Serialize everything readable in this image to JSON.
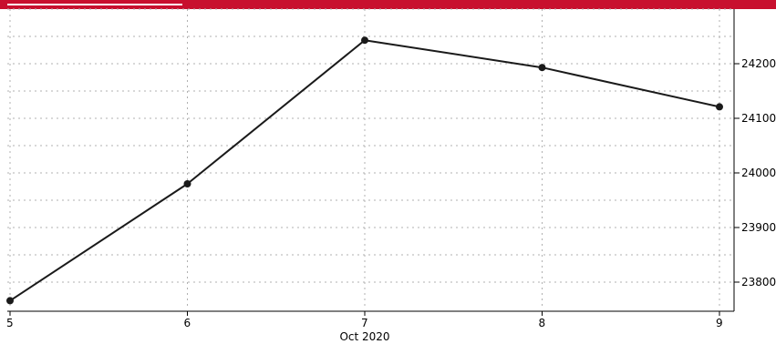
{
  "colors": {
    "banner": "#c8102e",
    "line": "#1a1a1a",
    "grid": "#b0b0b0"
  },
  "chart_data": {
    "type": "line",
    "title": "",
    "xlabel": "Oct 2020",
    "ylabel": "",
    "x": [
      "5",
      "6",
      "7",
      "8",
      "9"
    ],
    "x_tick_labels": [
      "5",
      "6",
      "7",
      "8",
      "9"
    ],
    "series": [
      {
        "values": [
          23766,
          23980,
          24243,
          24193,
          24121
        ]
      }
    ],
    "ylim": [
      23750,
      24300
    ],
    "y_ticks": [
      23800,
      23900,
      24000,
      24100,
      24200
    ],
    "y_tick_labels": [
      "23800",
      "23900",
      "24000",
      "24100",
      "24200"
    ],
    "y_axis_side": "right",
    "grid": true,
    "markers": true,
    "legend": "none"
  }
}
